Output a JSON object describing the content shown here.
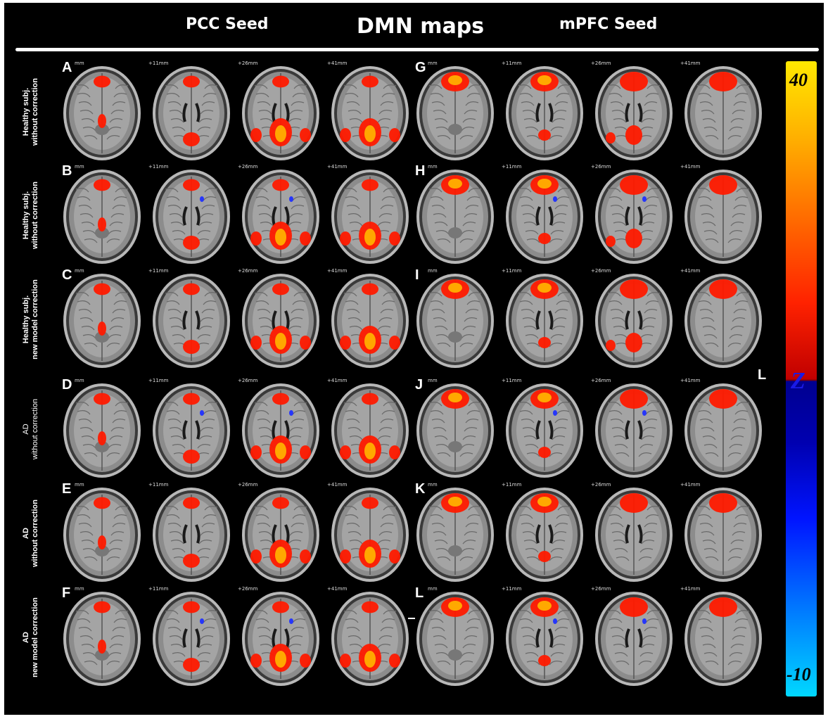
{
  "header": {
    "left_title": "PCC Seed",
    "center_title": "DMN maps",
    "right_title": "mPFC Seed"
  },
  "rows": [
    {
      "label_lines": "Healthy subj.\nwithout correction",
      "bold": true
    },
    {
      "label_lines": "Healthy subj.\nwithout correction",
      "bold": true
    },
    {
      "label_lines": "Healthy subj.\nnew model correction",
      "bold": true
    },
    {
      "label_lines": "AD\nwithout correction",
      "bold": false
    },
    {
      "label_lines": "AD\nwithout correction",
      "bold": true
    },
    {
      "label_lines": "AD\nnew model correction",
      "bold": true
    }
  ],
  "panel_letters": {
    "left": [
      "A",
      "B",
      "C",
      "D",
      "E",
      "F"
    ],
    "right": [
      "G",
      "H",
      "I",
      "J",
      "K",
      "L"
    ]
  },
  "extra_letter": "L",
  "slice_labels": [
    "mm",
    "+11mm",
    "+26mm",
    "+41mm"
  ],
  "colorbar": {
    "max_label": "40",
    "min_label": "-10",
    "axis_label": "Z",
    "max_color": "#ffe800",
    "min_color": "#00d8ff",
    "mid_label_color": "#1a1ae6"
  },
  "colors": {
    "background": "#000000",
    "activation": "#ff1a00",
    "activation_peak": "#ffb000",
    "deactivation": "#2030ff"
  }
}
